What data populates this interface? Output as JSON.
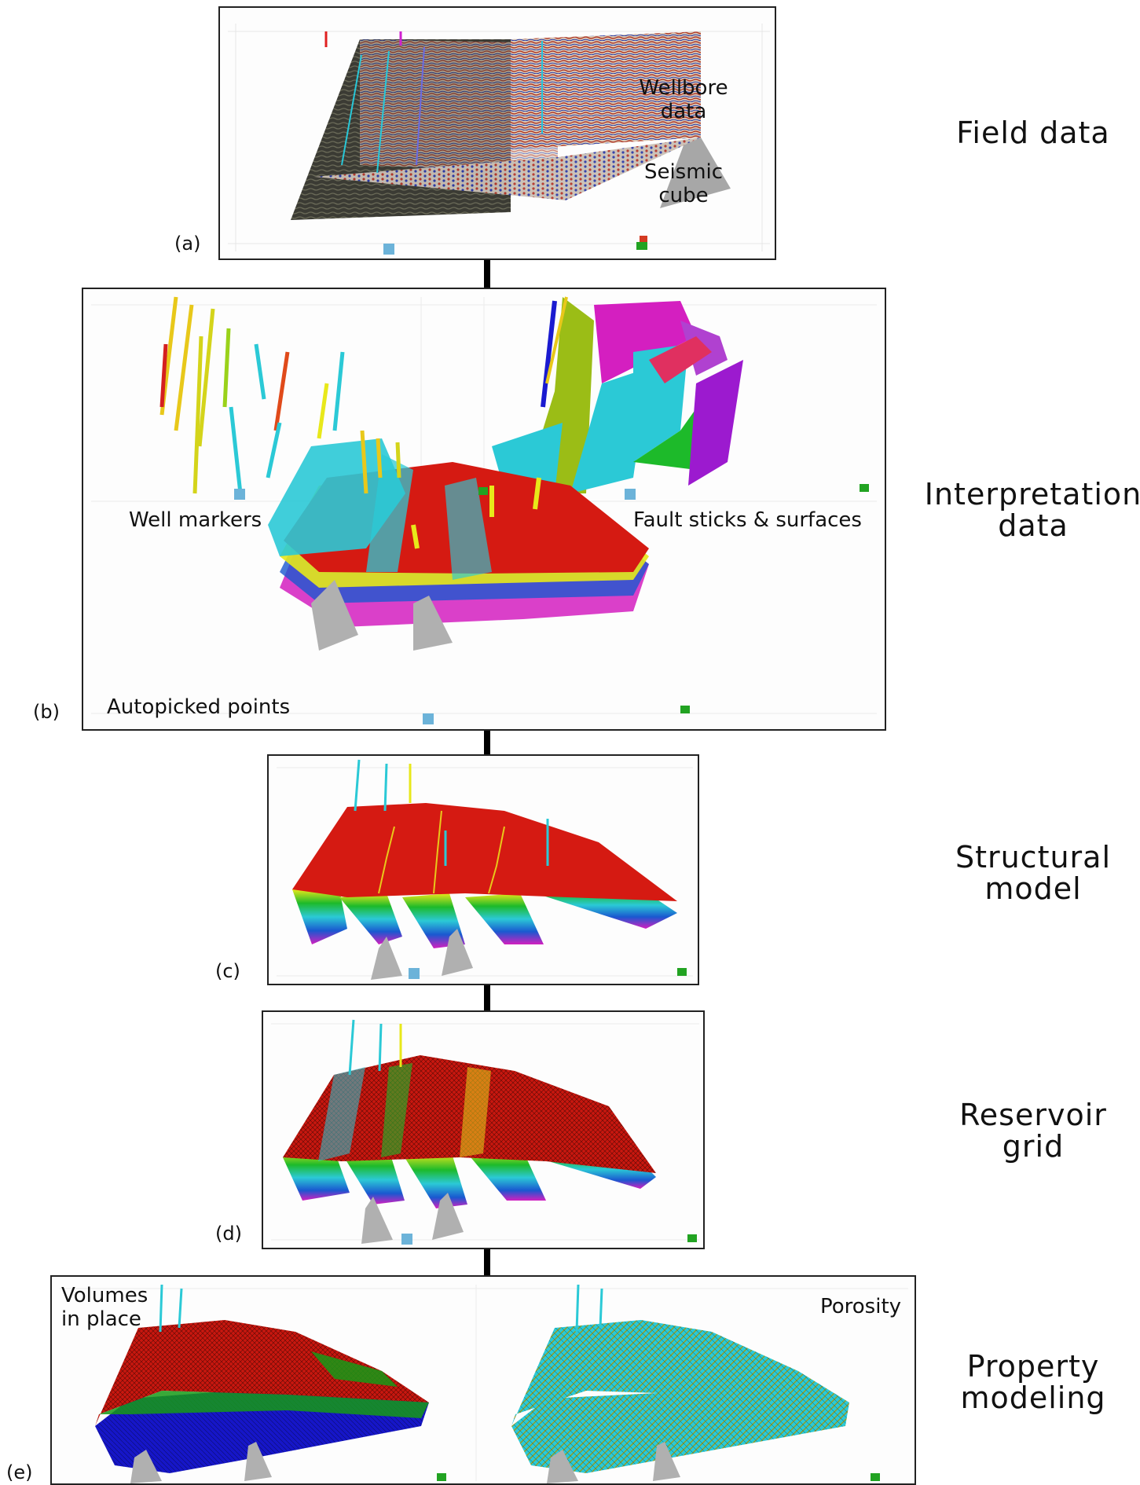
{
  "stages": {
    "field": "Field data",
    "interp_1": "Interpretation",
    "interp_2": "data",
    "struct_1": "Structural",
    "struct_2": "model",
    "grid_1": "Reservoir",
    "grid_2": "grid",
    "prop_1": "Property",
    "prop_2": "modeling"
  },
  "panel_a": {
    "tag": "(a)",
    "label_1_l1": "Wellbore",
    "label_1_l2": "data",
    "label_2_l1": "Seismic",
    "label_2_l2": "cube"
  },
  "panel_b": {
    "tag": "(b)",
    "well_markers": "Well markers",
    "fault": "Fault sticks & surfaces",
    "autopicked": "Autopicked points"
  },
  "panel_c": {
    "tag": "(c)"
  },
  "panel_d": {
    "tag": "(d)"
  },
  "panel_e": {
    "tag": "(e)",
    "volumes_l1": "Volumes",
    "volumes_l2": "in place",
    "porosity": "Porosity"
  },
  "colors": {
    "horizon_red": "#d51a12",
    "cyan": "#2bc9d6",
    "blue": "#1a1ad0",
    "yellow": "#e8e81a",
    "magenta": "#d41fc0",
    "green": "#18a818",
    "olive": "#9bbd16"
  }
}
